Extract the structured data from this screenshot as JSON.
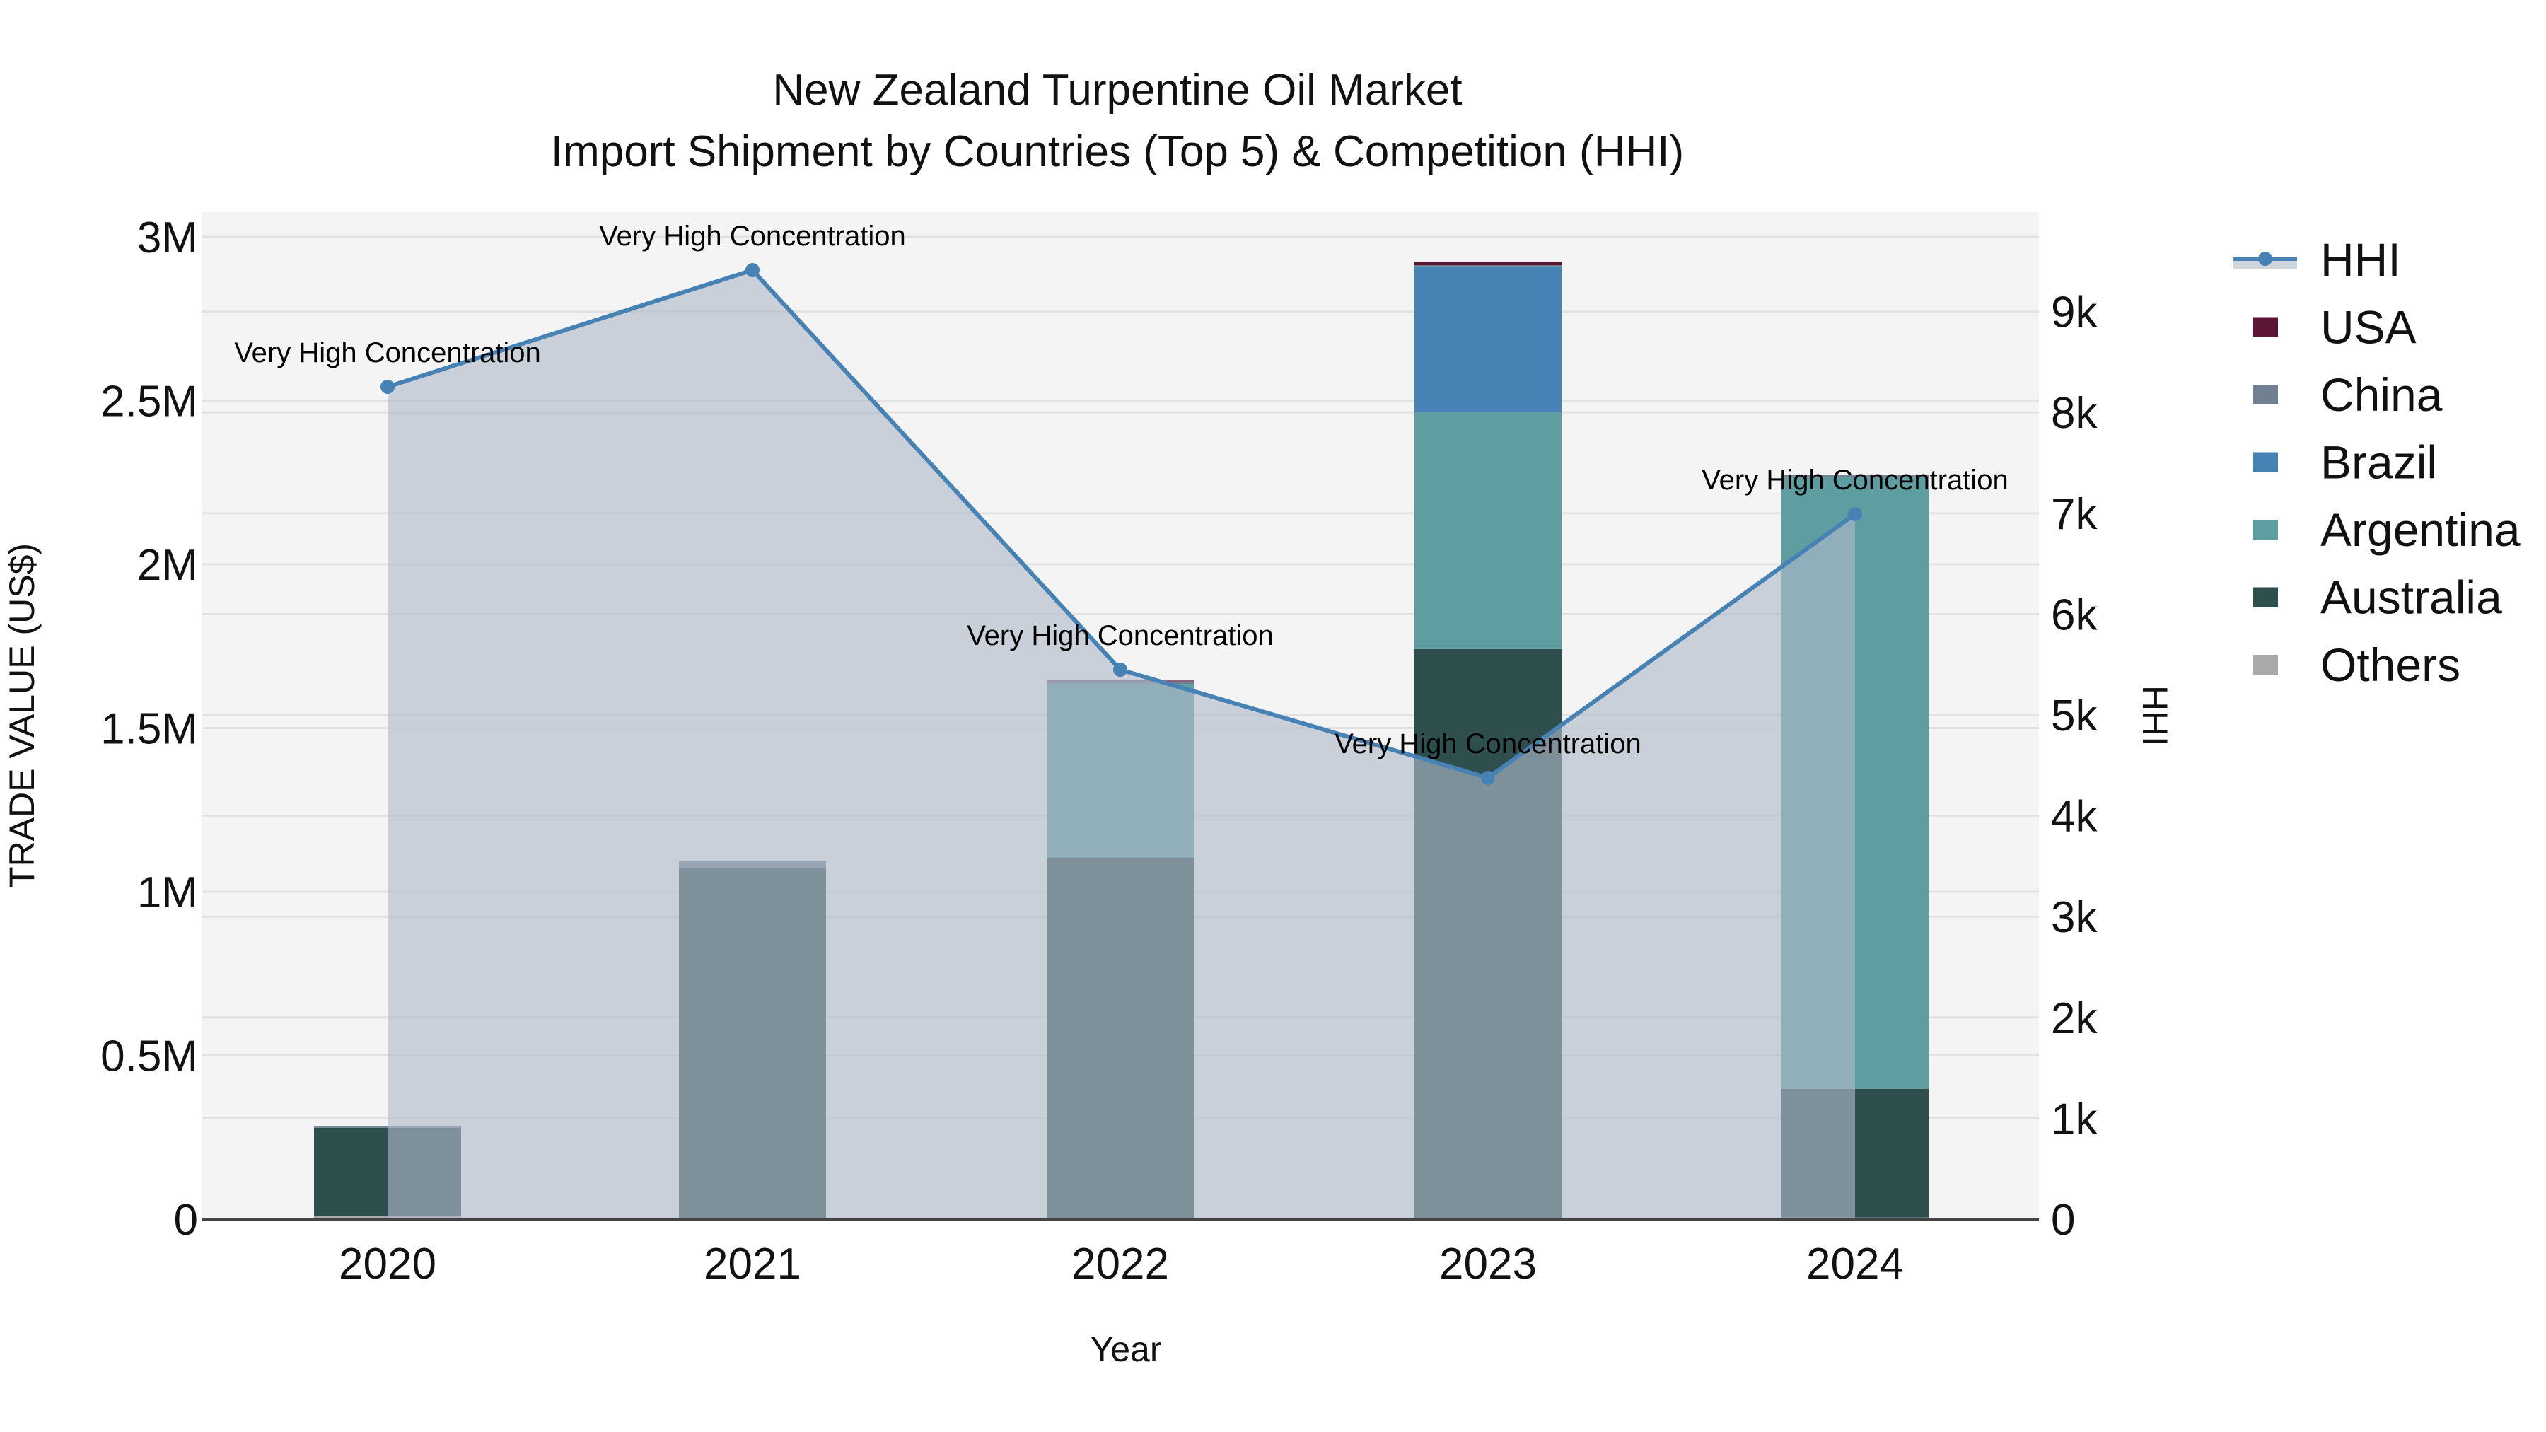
{
  "title": {
    "line1": "New Zealand Turpentine Oil Market",
    "line2": "Import Shipment by Countries (Top 5) & Competition (HHI)"
  },
  "axes": {
    "x_title": "Year",
    "y_left_title": "TRADE VALUE (US$)",
    "y_right_title": "HHI",
    "y_left_ticks": [
      "0",
      "0.5M",
      "1M",
      "1.5M",
      "2M",
      "2.5M",
      "3M"
    ],
    "y_right_ticks": [
      "0",
      "1k",
      "2k",
      "3k",
      "4k",
      "5k",
      "6k",
      "7k",
      "8k",
      "9k"
    ]
  },
  "legend": {
    "items": [
      {
        "label": "HHI",
        "type": "line",
        "color": "#4682b4"
      },
      {
        "label": "USA",
        "type": "box",
        "color": "#5c1535"
      },
      {
        "label": "China",
        "type": "box",
        "color": "#708090"
      },
      {
        "label": "Brazil",
        "type": "box",
        "color": "#4682b4"
      },
      {
        "label": "Argentina",
        "type": "box",
        "color": "#5f9ea0"
      },
      {
        "label": "Australia",
        "type": "box",
        "color": "#2f4f4f"
      },
      {
        "label": "Others",
        "type": "box",
        "color": "#a9a9a9"
      }
    ]
  },
  "colors": {
    "plot_bg": "#f4f4f4",
    "grid": "#e2e2e2",
    "hhi_line": "#4682b4",
    "hhi_fill": "rgba(176,186,202,0.62)",
    "axis_line": "#444444"
  },
  "chart_data": {
    "type": "bar",
    "title": "New Zealand Turpentine Oil Market — Import Shipment by Countries (Top 5) & Competition (HHI)",
    "xlabel": "Year",
    "ylabel": "TRADE VALUE (US$)",
    "y2label": "HHI",
    "categories": [
      "2020",
      "2021",
      "2022",
      "2023",
      "2024"
    ],
    "stack_order_bottom_to_top": [
      "Others",
      "Australia",
      "Argentina",
      "Brazil",
      "China",
      "USA"
    ],
    "series": [
      {
        "name": "Others",
        "color": "#a9a9a9",
        "values": [
          9000,
          0,
          3000,
          0,
          5000
        ]
      },
      {
        "name": "Australia",
        "color": "#2f4f4f",
        "values": [
          270000,
          1073000,
          1099000,
          1741000,
          393000
        ]
      },
      {
        "name": "Argentina",
        "color": "#5f9ea0",
        "values": [
          0,
          0,
          533000,
          724000,
          1868000
        ]
      },
      {
        "name": "Brazil",
        "color": "#4682b4",
        "values": [
          0,
          0,
          0,
          445000,
          0
        ]
      },
      {
        "name": "China",
        "color": "#708090",
        "values": [
          6000,
          20000,
          8000,
          3000,
          6000
        ]
      },
      {
        "name": "USA",
        "color": "#5c1535",
        "values": [
          0,
          0,
          2000,
          11000,
          0
        ]
      }
    ],
    "totals": [
      285000,
      1093000,
      1645000,
      2924000,
      2272000
    ],
    "hhi": {
      "name": "HHI",
      "axis": "right",
      "type": "line+area",
      "values": [
        8254,
        9411,
        5449,
        4376,
        6992
      ],
      "annotations": [
        "Very High Concentration",
        "Very High Concentration",
        "Very High Concentration",
        "Very High Concentration",
        "Very High Concentration"
      ]
    },
    "ylim": [
      0,
      3070000
    ],
    "y2lim": [
      0,
      9990
    ],
    "grid": true,
    "legend_position": "right"
  }
}
